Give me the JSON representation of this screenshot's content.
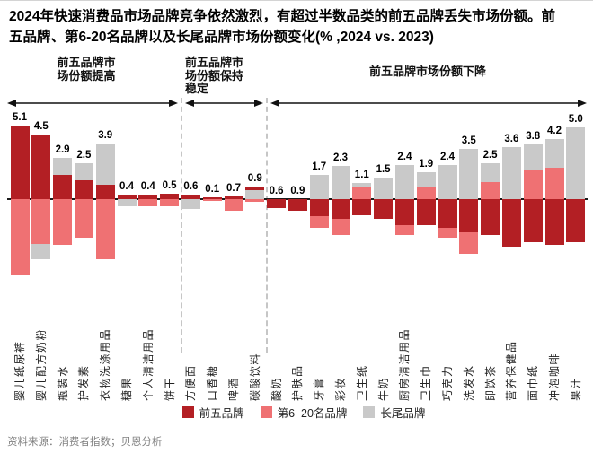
{
  "title": "2024年快速消费品市场品牌竞争依然激烈，有超过半数品类的前五品牌丢失市场份额。前五品牌、第6-20名品牌以及长尾品牌市场份额变化(% ,2024 vs. 2023)",
  "source": "资料来源：消费者指数；贝恩分析",
  "sections": [
    {
      "label": "前五品牌市场份额提高",
      "category_range": [
        0,
        7
      ]
    },
    {
      "label": "前五品牌市场份额保持稳定",
      "category_range": [
        8,
        11
      ]
    },
    {
      "label": "前五品牌市场份额下降",
      "category_range": [
        12,
        26
      ]
    }
  ],
  "legend": [
    {
      "key": "top5",
      "name": "前五品牌",
      "color": "#b31f24"
    },
    {
      "key": "mid",
      "name": "第6–20名品牌",
      "color": "#ef7173"
    },
    {
      "key": "tail",
      "name": "长尾品牌",
      "color": "#c9c9c9"
    }
  ],
  "chart_data": {
    "type": "bar",
    "subtype": "diverging-stacked",
    "unit": "市场份额变化（百分点）",
    "grid": false,
    "categories": [
      "婴儿纸尿裤",
      "婴儿配方奶粉",
      "瓶装水",
      "护发素",
      "衣物洗涤用品",
      "糖果",
      "个人清洁用品",
      "饼干",
      "方便面",
      "口香糖",
      "啤酒",
      "碳酸饮料",
      "酸奶",
      "护肤品",
      "牙膏",
      "彩妆",
      "卫生纸",
      "牛奶",
      "厨房清洁用品",
      "卫生巾",
      "巧克力",
      "洗发水",
      "即饮茶",
      "营养保健品",
      "面巾纸",
      "冲泡咖啡",
      "果汁"
    ],
    "value_labels": [
      5.1,
      4.5,
      2.9,
      2.5,
      3.9,
      0.4,
      0.4,
      0.5,
      0.6,
      0.1,
      0.7,
      0.9,
      0.6,
      0.9,
      1.7,
      2.3,
      1.1,
      1.5,
      2.4,
      1.9,
      2.4,
      3.5,
      2.5,
      3.6,
      3.8,
      4.2,
      5.0
    ],
    "bars": [
      {
        "above": [
          [
            "top5",
            5.1
          ]
        ],
        "below": [
          [
            "mid",
            5.3
          ]
        ]
      },
      {
        "above": [
          [
            "top5",
            4.5
          ]
        ],
        "below": [
          [
            "mid",
            3.1
          ],
          [
            "tail",
            1.1
          ]
        ]
      },
      {
        "above": [
          [
            "top5",
            1.7
          ],
          [
            "tail",
            1.2
          ]
        ],
        "below": [
          [
            "mid",
            3.2
          ]
        ]
      },
      {
        "above": [
          [
            "top5",
            1.3
          ],
          [
            "tail",
            1.2
          ]
        ],
        "below": [
          [
            "mid",
            2.7
          ]
        ]
      },
      {
        "above": [
          [
            "top5",
            1.0
          ],
          [
            "tail",
            2.9
          ]
        ],
        "below": [
          [
            "mid",
            4.2
          ]
        ]
      },
      {
        "above": [
          [
            "top5",
            0.3
          ]
        ],
        "below": [
          [
            "tail",
            0.5
          ]
        ]
      },
      {
        "above": [
          [
            "top5",
            0.3
          ]
        ],
        "below": [
          [
            "mid",
            0.5
          ]
        ]
      },
      {
        "above": [
          [
            "top5",
            0.4
          ]
        ],
        "below": [
          [
            "mid",
            0.5
          ]
        ]
      },
      {
        "above": [
          [
            "top5",
            0.3
          ]
        ],
        "below": [
          [
            "tail",
            0.7
          ]
        ]
      },
      {
        "above": [
          [
            "top5",
            0.1
          ]
        ],
        "below": [
          [
            "mid",
            0.1
          ]
        ]
      },
      {
        "above": [
          [
            "top5",
            0.2
          ]
        ],
        "below": [
          [
            "mid",
            0.8
          ]
        ]
      },
      {
        "above": [
          [
            "tail",
            0.6
          ],
          [
            "top5",
            0.3
          ]
        ],
        "below": [
          [
            "mid",
            0.2
          ]
        ]
      },
      {
        "above": [],
        "below": [
          [
            "top5",
            0.6
          ]
        ]
      },
      {
        "above": [],
        "below": [
          [
            "top5",
            0.8
          ]
        ]
      },
      {
        "above": [
          [
            "tail",
            1.7
          ]
        ],
        "below": [
          [
            "top5",
            1.2
          ],
          [
            "mid",
            0.8
          ]
        ]
      },
      {
        "above": [
          [
            "tail",
            2.3
          ]
        ],
        "below": [
          [
            "top5",
            1.4
          ],
          [
            "mid",
            1.1
          ]
        ]
      },
      {
        "above": [
          [
            "mid",
            0.9
          ],
          [
            "tail",
            0.2
          ]
        ],
        "below": [
          [
            "top5",
            1.1
          ]
        ]
      },
      {
        "above": [
          [
            "tail",
            1.5
          ]
        ],
        "below": [
          [
            "top5",
            1.4
          ]
        ]
      },
      {
        "above": [
          [
            "tail",
            2.4
          ]
        ],
        "below": [
          [
            "top5",
            1.8
          ],
          [
            "mid",
            0.7
          ]
        ]
      },
      {
        "above": [
          [
            "mid",
            0.9
          ],
          [
            "tail",
            1.0
          ]
        ],
        "below": [
          [
            "top5",
            1.8
          ]
        ]
      },
      {
        "above": [
          [
            "tail",
            2.4
          ]
        ],
        "below": [
          [
            "top5",
            2.0
          ],
          [
            "mid",
            0.7
          ]
        ]
      },
      {
        "above": [
          [
            "tail",
            3.5
          ]
        ],
        "below": [
          [
            "top5",
            2.3
          ],
          [
            "mid",
            1.5
          ]
        ]
      },
      {
        "above": [
          [
            "mid",
            1.2
          ],
          [
            "tail",
            1.3
          ]
        ],
        "below": [
          [
            "top5",
            2.5
          ]
        ]
      },
      {
        "above": [
          [
            "tail",
            3.6
          ]
        ],
        "below": [
          [
            "top5",
            3.3
          ]
        ]
      },
      {
        "above": [
          [
            "mid",
            2.0
          ],
          [
            "tail",
            1.8
          ]
        ],
        "below": [
          [
            "top5",
            3.0
          ]
        ]
      },
      {
        "above": [
          [
            "mid",
            2.2
          ],
          [
            "tail",
            2.0
          ]
        ],
        "below": [
          [
            "top5",
            3.2
          ]
        ]
      },
      {
        "above": [
          [
            "tail",
            5.0
          ]
        ],
        "below": [
          [
            "top5",
            3.0
          ]
        ]
      }
    ]
  }
}
